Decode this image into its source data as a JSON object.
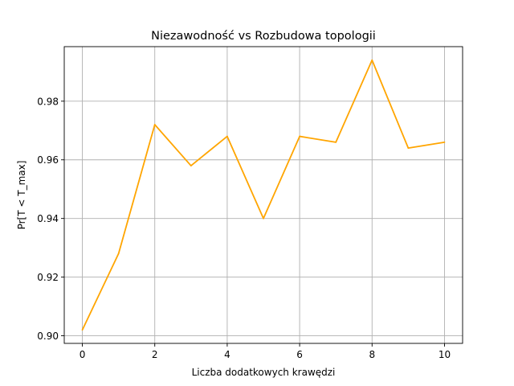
{
  "chart_data": {
    "type": "line",
    "title": "Niezawodność vs Rozbudowa topologii",
    "xlabel": "Liczba dodatkowych krawędzi",
    "ylabel": "Pr[T < T_max]",
    "x": [
      0,
      1,
      2,
      3,
      4,
      5,
      6,
      7,
      8,
      9,
      10
    ],
    "series": [
      {
        "values": [
          0.902,
          0.928,
          0.972,
          0.958,
          0.968,
          0.94,
          0.968,
          0.966,
          0.994,
          0.964,
          0.966
        ],
        "color": "#ffa500"
      }
    ],
    "xlim": [
      -0.5,
      10.5
    ],
    "ylim": [
      0.8974,
      0.9986
    ],
    "xticks": [
      0,
      2,
      4,
      6,
      8,
      10
    ],
    "xtick_labels": [
      "0",
      "2",
      "4",
      "6",
      "8",
      "10"
    ],
    "yticks": [
      0.9,
      0.92,
      0.94,
      0.96,
      0.98
    ],
    "ytick_labels": [
      "0.90",
      "0.92",
      "0.94",
      "0.96",
      "0.98"
    ],
    "grid": true,
    "legend": "none"
  }
}
